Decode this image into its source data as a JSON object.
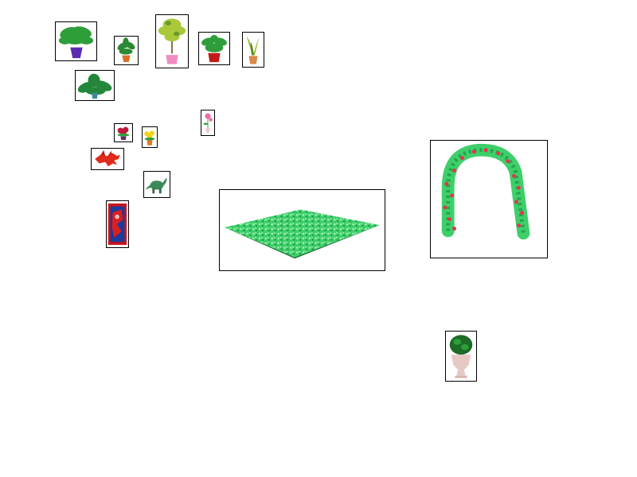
{
  "canvas": {
    "background": "#ffffff"
  },
  "items": [
    {
      "name": "monstera-purple-pot",
      "icon": "potted-plant-icon"
    },
    {
      "name": "small-plant-orange-pot",
      "icon": "potted-plant-icon"
    },
    {
      "name": "tree-pink-pot",
      "icon": "potted-tree-icon"
    },
    {
      "name": "leafy-plant-red-pot",
      "icon": "potted-plant-icon"
    },
    {
      "name": "snake-plant-orange-pot",
      "icon": "potted-plant-icon"
    },
    {
      "name": "monstera-teal-pot",
      "icon": "potted-plant-icon"
    },
    {
      "name": "pink-tulip-vase",
      "icon": "flower-icon"
    },
    {
      "name": "red-flower-pot",
      "icon": "flower-icon"
    },
    {
      "name": "yellow-flower-pot",
      "icon": "flower-icon"
    },
    {
      "name": "red-dragon-toy",
      "icon": "dragon-icon"
    },
    {
      "name": "green-dinosaur-toy",
      "icon": "dinosaur-icon"
    },
    {
      "name": "spiderman-poster",
      "icon": "poster-icon"
    },
    {
      "name": "grass-mat",
      "icon": "grass-mat-icon"
    },
    {
      "name": "rose-arch",
      "icon": "arch-icon"
    },
    {
      "name": "topiary-urn",
      "icon": "topiary-icon"
    }
  ],
  "colors": {
    "leaf": "#2e9e3a",
    "leaf_dark": "#1d6b28",
    "grass": "#3ecf6a",
    "rose": "#e8314f"
  }
}
